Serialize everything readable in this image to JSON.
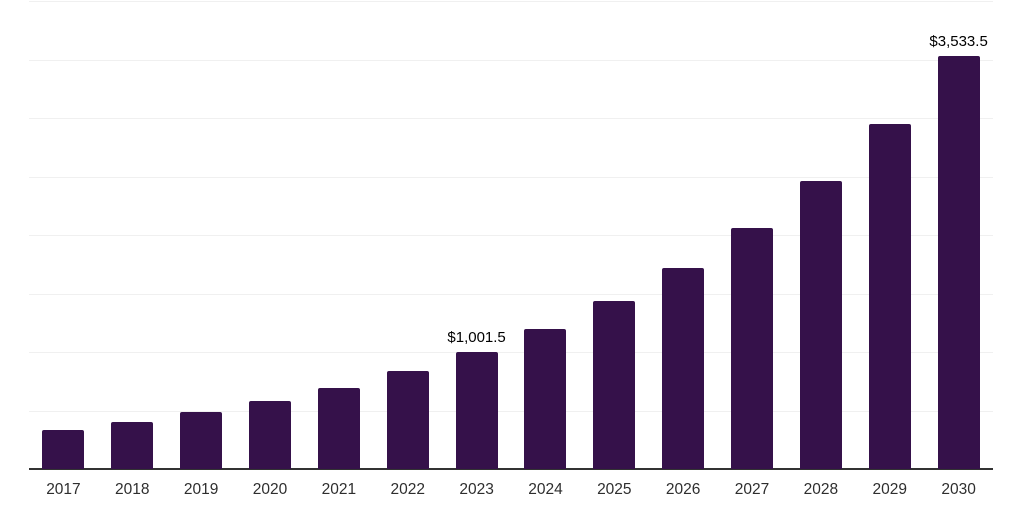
{
  "page": {
    "background": "#ffffff"
  },
  "chart": {
    "bar_color": "#35114A",
    "gridline_color": "#f0f0f0",
    "axis_line_color": "#333333",
    "value_label_color": "#000000",
    "tick_label_color": "#2e2e2e"
  },
  "chart_data": {
    "type": "bar",
    "title": "",
    "xlabel": "",
    "ylabel": "",
    "categories": [
      "2017",
      "2018",
      "2019",
      "2020",
      "2021",
      "2022",
      "2023",
      "2024",
      "2025",
      "2026",
      "2027",
      "2028",
      "2029",
      "2030"
    ],
    "values": [
      336,
      399,
      488,
      582,
      690,
      837,
      1001.5,
      1195,
      1436,
      1719,
      2057,
      2458,
      2946,
      3533.5
    ],
    "value_labels": {
      "2023": "$1,001.5",
      "2030": "$3,533.5"
    },
    "ylim": [
      0,
      4000
    ],
    "gridline_step": 500,
    "grid": true,
    "legend_position": "none",
    "y_axis_labels_visible": false
  }
}
